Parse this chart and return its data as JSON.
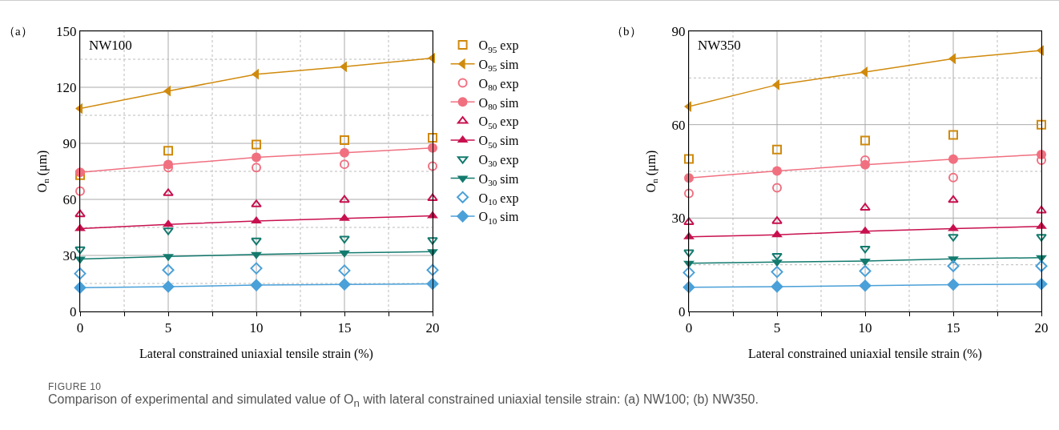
{
  "chart_data": [
    {
      "type": "scatter",
      "xlabel": "Lateral constrained uniaxial tensile strain (%)",
      "ylabel": "O$_{n}$ (μm)",
      "x": [
        0,
        5,
        10,
        15,
        20
      ],
      "xlim": [
        0,
        20
      ],
      "xticks": [
        0,
        {
          "value": 2.5,
          "label": null
        },
        5,
        {
          "value": 7.5,
          "label": null
        },
        10,
        {
          "value": 12.5,
          "label": null
        },
        15,
        {
          "value": 17.5,
          "label": null
        },
        20
      ],
      "ylim": [
        0,
        150
      ],
      "yticks": [
        0,
        {
          "value": 15,
          "label": null
        },
        30,
        {
          "value": 45,
          "label": null
        },
        60,
        {
          "value": 75,
          "label": null
        },
        90,
        {
          "value": 105,
          "label": null
        },
        120,
        {
          "value": 135,
          "label": null
        },
        150
      ],
      "grid": true,
      "legend": "right",
      "annotations": [
        "（a）",
        "NW100",
        "FIGURE 10",
        "Comparison of experimental and simulated value of O$_{n}$ with lateral constrained uniaxial tensile strain: (a) NW100; (b) NW350."
      ],
      "series": [
        {
          "name": "O$_{95}$ exp",
          "marker": "square",
          "color": "#d08a0c",
          "values": [
            73,
            86,
            89.4,
            91.7,
            93
          ]
        },
        {
          "name": "O$_{95}$ sim",
          "type": "line",
          "marker": "triangle-left",
          "color": "#d08a0c",
          "values": [
            108.6,
            118,
            127,
            131,
            135.6
          ]
        },
        {
          "name": "O$_{80}$ exp",
          "marker": "circle",
          "color": "#f07080",
          "values": [
            64.4,
            77,
            77,
            78.8,
            77.8
          ]
        },
        {
          "name": "O$_{80}$ sim",
          "type": "line",
          "marker": "circle",
          "color": "#f07080",
          "values": [
            74.5,
            78.6,
            82.5,
            85,
            87.5
          ]
        },
        {
          "name": "O$_{50}$ exp",
          "marker": "triangle",
          "color": "#c8104f",
          "values": [
            52,
            63.3,
            57.3,
            59.7,
            60.6
          ]
        },
        {
          "name": "O$_{50}$ sim",
          "type": "line",
          "marker": "triangle",
          "color": "#c8104f",
          "values": [
            44.4,
            46.6,
            48.4,
            49.8,
            51.2
          ]
        },
        {
          "name": "O$_{30}$ exp",
          "marker": "triangle-down",
          "color": "#137a6e",
          "values": [
            33.3,
            43.4,
            38,
            39,
            38.3
          ]
        },
        {
          "name": "O$_{30}$ sim",
          "type": "line",
          "marker": "triangle-down",
          "color": "#137a6e",
          "values": [
            28.1,
            29.5,
            30.5,
            31.4,
            32
          ]
        },
        {
          "name": "O$_{10}$ exp",
          "marker": "diamond",
          "color": "#4aa0d8",
          "values": [
            20.3,
            22.2,
            23.1,
            21.9,
            22.2
          ]
        },
        {
          "name": "O$_{10}$ sim",
          "type": "line",
          "marker": "diamond",
          "color": "#4aa0d8",
          "values": [
            12.8,
            13.3,
            14.1,
            14.5,
            14.8
          ]
        }
      ]
    },
    {
      "type": "scatter",
      "xlabel": "Lateral constrained uniaxial tensile strain (%)",
      "ylabel": "O$_{n}$ (μm)",
      "x": [
        0,
        5,
        10,
        15,
        20
      ],
      "xlim": [
        0,
        20
      ],
      "xticks": [
        0,
        {
          "value": 2.5,
          "label": null
        },
        5,
        {
          "value": 7.5,
          "label": null
        },
        10,
        {
          "value": 12.5,
          "label": null
        },
        15,
        {
          "value": 17.5,
          "label": null
        },
        20
      ],
      "ylim": [
        0,
        90
      ],
      "yticks": [
        0,
        {
          "value": 15,
          "label": null
        },
        30,
        {
          "value": 45,
          "label": null
        },
        60,
        {
          "value": 75,
          "label": null
        },
        90
      ],
      "grid": true,
      "annotations": [
        "（b）",
        "NW350"
      ],
      "series": [
        {
          "marker": "square",
          "color": "#d08a0c",
          "values": [
            49,
            52,
            54.9,
            56.7,
            60
          ]
        },
        {
          "type": "line",
          "marker": "triangle-left",
          "color": "#d08a0c",
          "values": [
            65.8,
            72.8,
            76.9,
            81.2,
            83.8
          ]
        },
        {
          "marker": "circle",
          "color": "#f07080",
          "values": [
            37.9,
            39.7,
            48.6,
            43,
            48.6
          ]
        },
        {
          "type": "line",
          "marker": "circle",
          "color": "#f07080",
          "values": [
            42.9,
            45.1,
            47.1,
            48.9,
            50.4
          ]
        },
        {
          "marker": "triangle",
          "color": "#c8104f",
          "values": [
            28.7,
            29,
            33.3,
            35.8,
            32.4
          ]
        },
        {
          "type": "line",
          "marker": "triangle",
          "color": "#c8104f",
          "values": [
            24,
            24.6,
            25.8,
            26.6,
            27.3
          ]
        },
        {
          "marker": "triangle-down",
          "color": "#137a6e",
          "values": [
            19,
            17.9,
            20.2,
            24,
            24
          ]
        },
        {
          "type": "line",
          "marker": "triangle-down",
          "color": "#137a6e",
          "values": [
            15.5,
            15.9,
            16.2,
            16.9,
            17.3
          ]
        },
        {
          "marker": "diamond",
          "color": "#4aa0d8",
          "values": [
            12.5,
            12.7,
            13,
            14.6,
            14.6
          ]
        },
        {
          "type": "line",
          "marker": "diamond",
          "color": "#4aa0d8",
          "values": [
            7.8,
            8,
            8.3,
            8.6,
            8.8
          ]
        }
      ]
    }
  ]
}
